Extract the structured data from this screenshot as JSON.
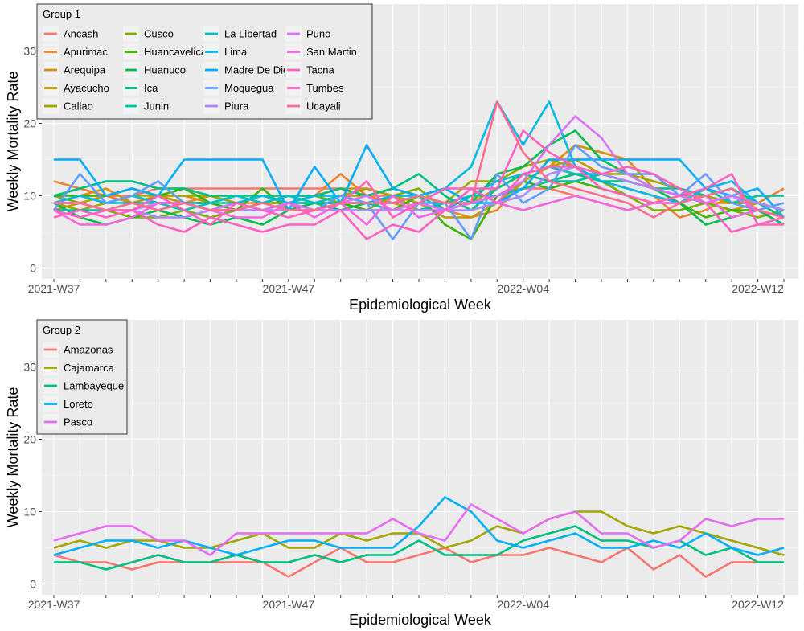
{
  "chart_data": [
    {
      "type": "line",
      "panel": "top",
      "title": "",
      "xlabel": "Epidemiological Week",
      "ylabel": "Weekly Mortality Rate",
      "ylim": [
        -1.5,
        36.5
      ],
      "yticks": [
        0,
        10,
        20,
        30
      ],
      "x_count": 29,
      "x_tick_labels": [
        {
          "index": 0,
          "label": "2021-W37"
        },
        {
          "index": 9,
          "label": "2021-W47"
        },
        {
          "index": 18,
          "label": "2022-W04"
        },
        {
          "index": 27,
          "label": "2022-W12"
        }
      ],
      "grid": true,
      "legend": {
        "title": "Group 1",
        "position": "top-left",
        "columns": 4
      },
      "series": [
        {
          "name": "Ancash",
          "color": "#F8766D",
          "values": [
            9,
            10,
            10,
            10,
            11,
            11,
            11,
            11,
            11,
            11,
            11,
            11,
            10,
            10,
            10,
            9,
            9,
            10,
            11,
            11,
            10,
            9,
            8,
            9,
            10,
            10,
            9,
            9,
            8
          ]
        },
        {
          "name": "Apurimac",
          "color": "#EA8331",
          "values": [
            12,
            11,
            10,
            9,
            10,
            9,
            10,
            9,
            9,
            10,
            10,
            13,
            10,
            9,
            8,
            8,
            7,
            8,
            12,
            14,
            13,
            12,
            11,
            10,
            7,
            8,
            10,
            9,
            11
          ]
        },
        {
          "name": "Arequipa",
          "color": "#D89000",
          "values": [
            9,
            10,
            11,
            9,
            10,
            10,
            9,
            10,
            9,
            9,
            10,
            11,
            11,
            10,
            8,
            8,
            9,
            11,
            13,
            14,
            17,
            16,
            15,
            11,
            10,
            9,
            9,
            8,
            7
          ]
        },
        {
          "name": "Ayacucho",
          "color": "#C09B00",
          "values": [
            8,
            9,
            10,
            11,
            10,
            9,
            9,
            8,
            9,
            10,
            9,
            10,
            11,
            10,
            9,
            7,
            7,
            9,
            12,
            14,
            15,
            13,
            12,
            11,
            10,
            9,
            8,
            9,
            8
          ]
        },
        {
          "name": "Callao",
          "color": "#A3A500",
          "values": [
            9,
            8,
            9,
            10,
            10,
            10,
            10,
            9,
            10,
            9,
            9,
            10,
            10,
            11,
            10,
            9,
            12,
            12,
            14,
            15,
            14,
            13,
            13,
            12,
            11,
            10,
            9,
            9,
            8
          ]
        },
        {
          "name": "Cusco",
          "color": "#7CAE00",
          "values": [
            10,
            9,
            8,
            7,
            7,
            8,
            7,
            8,
            9,
            9,
            10,
            9,
            8,
            10,
            11,
            8,
            9,
            10,
            11,
            12,
            13,
            12,
            10,
            8,
            8,
            9,
            8,
            7,
            8
          ]
        },
        {
          "name": "Huancavelica",
          "color": "#39B600",
          "values": [
            10,
            10,
            10,
            11,
            10,
            11,
            9,
            8,
            11,
            8,
            9,
            9,
            8,
            8,
            10,
            6,
            4,
            10,
            12,
            11,
            12,
            11,
            10,
            9,
            9,
            7,
            8,
            8,
            7
          ]
        },
        {
          "name": "Huanuco",
          "color": "#00BB4E",
          "values": [
            9,
            7,
            6,
            7,
            8,
            7,
            6,
            7,
            6,
            8,
            9,
            8,
            9,
            9,
            10,
            11,
            9,
            13,
            14,
            17,
            19,
            15,
            13,
            11,
            9,
            6,
            7,
            8,
            6
          ]
        },
        {
          "name": "Ica",
          "color": "#00BF7D",
          "values": [
            10,
            11,
            12,
            12,
            11,
            11,
            10,
            10,
            10,
            10,
            10,
            11,
            10,
            11,
            13,
            10,
            8,
            11,
            13,
            12,
            13,
            12,
            12,
            11,
            11,
            10,
            11,
            9,
            7
          ]
        },
        {
          "name": "Junin",
          "color": "#00C1A3",
          "values": [
            8,
            8,
            8,
            9,
            9,
            8,
            9,
            9,
            8,
            9,
            9,
            9,
            9,
            8,
            8,
            9,
            10,
            10,
            11,
            12,
            12,
            13,
            12,
            11,
            10,
            11,
            9,
            10,
            10
          ]
        },
        {
          "name": "La Libertad",
          "color": "#00BFC4",
          "values": [
            9,
            10,
            9,
            9,
            8,
            9,
            9,
            10,
            9,
            10,
            9,
            10,
            9,
            9,
            10,
            8,
            10,
            12,
            13,
            14,
            13,
            13,
            12,
            11,
            10,
            9,
            10,
            9,
            8
          ]
        },
        {
          "name": "Lima",
          "color": "#00B9E3",
          "values": [
            9,
            10,
            9,
            10,
            9,
            9,
            8,
            9,
            10,
            9,
            10,
            10,
            9,
            10,
            10,
            11,
            14,
            23,
            17,
            23,
            14,
            12,
            11,
            10,
            9,
            11,
            12,
            9,
            8
          ]
        },
        {
          "name": "Madre De Dios",
          "color": "#00ADFA",
          "values": [
            15,
            15,
            10,
            11,
            10,
            15,
            15,
            15,
            15,
            8,
            14,
            9,
            17,
            11,
            10,
            11,
            9,
            9,
            11,
            15,
            15,
            15,
            15,
            15,
            15,
            11,
            10,
            11,
            7
          ]
        },
        {
          "name": "Moquegua",
          "color": "#619CFF",
          "values": [
            8,
            13,
            9,
            10,
            12,
            9,
            8,
            8,
            8,
            9,
            8,
            10,
            9,
            4,
            9,
            9,
            4,
            13,
            9,
            11,
            17,
            14,
            13,
            13,
            10,
            13,
            9,
            8,
            9
          ]
        },
        {
          "name": "Piura",
          "color": "#AE87FF",
          "values": [
            9,
            9,
            8,
            8,
            7,
            7,
            8,
            8,
            8,
            8,
            8,
            8,
            8,
            8,
            8,
            8,
            8,
            9,
            10,
            13,
            14,
            13,
            12,
            11,
            10,
            9,
            10,
            9,
            8
          ]
        },
        {
          "name": "Puno",
          "color": "#DB72FB",
          "values": [
            9,
            9,
            8,
            8,
            9,
            9,
            8,
            9,
            8,
            9,
            8,
            9,
            10,
            8,
            9,
            8,
            9,
            10,
            12,
            17,
            21,
            18,
            13,
            11,
            10,
            9,
            10,
            8,
            7
          ]
        },
        {
          "name": "San Martin",
          "color": "#F564E3",
          "values": [
            8,
            6,
            6,
            7,
            9,
            9,
            8,
            7,
            7,
            9,
            7,
            9,
            6,
            10,
            7,
            8,
            11,
            9,
            8,
            9,
            10,
            9,
            8,
            9,
            9,
            10,
            7,
            8,
            7
          ]
        },
        {
          "name": "Tacna",
          "color": "#FF61C3",
          "values": [
            7,
            8,
            7,
            8,
            6,
            5,
            7,
            6,
            5,
            6,
            6,
            8,
            4,
            6,
            5,
            8,
            11,
            9,
            13,
            14,
            14,
            13,
            14,
            13,
            11,
            9,
            5,
            6,
            7
          ]
        },
        {
          "name": "Tumbes",
          "color": "#FF62BC",
          "values": [
            8,
            7,
            8,
            8,
            10,
            8,
            6,
            9,
            8,
            7,
            8,
            9,
            12,
            7,
            9,
            11,
            11,
            11,
            19,
            16,
            14,
            11,
            10,
            9,
            10,
            11,
            13,
            6,
            6
          ]
        },
        {
          "name": "Ucayali",
          "color": "#FF6C91",
          "values": [
            9,
            9,
            8,
            9,
            8,
            9,
            8,
            8,
            9,
            8,
            8,
            9,
            9,
            9,
            10,
            9,
            9,
            23,
            16,
            12,
            11,
            10,
            9,
            7,
            9,
            10,
            11,
            8,
            7
          ]
        }
      ]
    },
    {
      "type": "line",
      "panel": "bottom",
      "title": "",
      "xlabel": "Epidemiological Week",
      "ylabel": "Weekly Mortality Rate",
      "ylim": [
        -1.5,
        36.5
      ],
      "yticks": [
        0,
        10,
        20,
        30
      ],
      "x_count": 29,
      "x_tick_labels": [
        {
          "index": 0,
          "label": "2021-W37"
        },
        {
          "index": 9,
          "label": "2021-W47"
        },
        {
          "index": 18,
          "label": "2022-W04"
        },
        {
          "index": 27,
          "label": "2022-W12"
        }
      ],
      "grid": true,
      "legend": {
        "title": "Group 2",
        "position": "top-left",
        "columns": 1
      },
      "series": [
        {
          "name": "Amazonas",
          "color": "#F8766D",
          "values": [
            4,
            3,
            3,
            2,
            3,
            3,
            3,
            3,
            3,
            1,
            3,
            5,
            3,
            3,
            4,
            5,
            3,
            4,
            4,
            5,
            4,
            3,
            5,
            2,
            4,
            1,
            3,
            3,
            3
          ]
        },
        {
          "name": "Cajamarca",
          "color": "#A3A500",
          "values": [
            5,
            6,
            5,
            6,
            6,
            5,
            5,
            6,
            7,
            5,
            5,
            7,
            6,
            7,
            7,
            5,
            6,
            8,
            7,
            9,
            10,
            10,
            8,
            7,
            8,
            7,
            6,
            5,
            4
          ]
        },
        {
          "name": "Lambayeque",
          "color": "#00BF7D",
          "values": [
            3,
            3,
            2,
            3,
            4,
            3,
            3,
            4,
            3,
            3,
            4,
            3,
            4,
            4,
            6,
            4,
            4,
            4,
            6,
            7,
            8,
            6,
            6,
            5,
            6,
            4,
            5,
            3,
            3
          ]
        },
        {
          "name": "Loreto",
          "color": "#00B0F6",
          "values": [
            4,
            5,
            6,
            6,
            5,
            6,
            5,
            4,
            5,
            6,
            6,
            5,
            5,
            5,
            8,
            12,
            10,
            6,
            5,
            6,
            7,
            5,
            5,
            6,
            5,
            7,
            5,
            4,
            5
          ]
        },
        {
          "name": "Pasco",
          "color": "#E76BF3",
          "values": [
            6,
            7,
            8,
            8,
            6,
            6,
            4,
            7,
            7,
            7,
            7,
            7,
            7,
            9,
            7,
            6,
            11,
            9,
            7,
            9,
            10,
            7,
            7,
            5,
            6,
            9,
            8,
            9,
            9
          ]
        }
      ]
    }
  ]
}
